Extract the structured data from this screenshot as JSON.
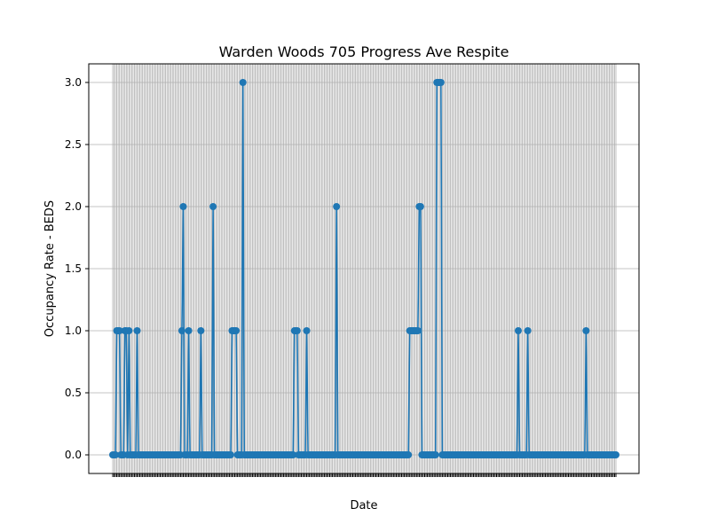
{
  "chart_data": {
    "type": "line",
    "title": "Warden Woods 705 Progress Ave Respite",
    "xlabel": "Date",
    "ylabel": "Occupancy Rate - BEDS",
    "ylim": [
      -0.15,
      3.15
    ],
    "yticks": [
      "0.0",
      "0.5",
      "1.0",
      "1.5",
      "2.0",
      "2.5",
      "3.0"
    ],
    "grid": true,
    "marker": "circle",
    "line_color": "#1f77b4",
    "series": [
      {
        "values": [
          0,
          0,
          0,
          1,
          1,
          1,
          0,
          0,
          0,
          1,
          1,
          0,
          1,
          0,
          0,
          0,
          0,
          0,
          1,
          0,
          0,
          0,
          0,
          0,
          0,
          0,
          0,
          0,
          0,
          0,
          0,
          0,
          0,
          0,
          0,
          0,
          0,
          0,
          0,
          0,
          0,
          0,
          0,
          0,
          0,
          0,
          0,
          0,
          0,
          0,
          0,
          1,
          2,
          0,
          0,
          0,
          1,
          0,
          0,
          0,
          0,
          0,
          0,
          0,
          0,
          1,
          0,
          0,
          0,
          0,
          0,
          0,
          0,
          0,
          2,
          0,
          0,
          0,
          0,
          0,
          0,
          0,
          0,
          0,
          0,
          0,
          0,
          0,
          1,
          1,
          1,
          1,
          0,
          0,
          0,
          0,
          3,
          0,
          0,
          0,
          0,
          0,
          0,
          0,
          0,
          0,
          0,
          0,
          0,
          0,
          0,
          0,
          0,
          0,
          0,
          0,
          0,
          0,
          0,
          0,
          0,
          0,
          0,
          0,
          0,
          0,
          0,
          0,
          0,
          0,
          0,
          0,
          0,
          0,
          1,
          1,
          1,
          0,
          0,
          0,
          0,
          0,
          0,
          1,
          0,
          0,
          0,
          0,
          0,
          0,
          0,
          0,
          0,
          0,
          0,
          0,
          0,
          0,
          0,
          0,
          0,
          0,
          0,
          0,
          0,
          2,
          0,
          0,
          0,
          0,
          0,
          0,
          0,
          0,
          0,
          0,
          0,
          0,
          0,
          0,
          0,
          0,
          0,
          0,
          0,
          0,
          0,
          0,
          0,
          0,
          0,
          0,
          0,
          0,
          0,
          0,
          0,
          0,
          0,
          0,
          0,
          0,
          0,
          0,
          0,
          0,
          0,
          0,
          0,
          0,
          0,
          0,
          0,
          0,
          0,
          0,
          0,
          0,
          0,
          1,
          1,
          1,
          1,
          1,
          1,
          1,
          2,
          2,
          0,
          0,
          0,
          0,
          0,
          0,
          0,
          0,
          0,
          0,
          0,
          3,
          3,
          3,
          3,
          0,
          0,
          0,
          0,
          0,
          0,
          0,
          0,
          0,
          0,
          0,
          0,
          0,
          0,
          0,
          0,
          0,
          0,
          0,
          0,
          0,
          0,
          0,
          0,
          0,
          0,
          0,
          0,
          0,
          0,
          0,
          0,
          0,
          0,
          0,
          0,
          0,
          0,
          0,
          0,
          0,
          0,
          0,
          0,
          0,
          0,
          0,
          0,
          0,
          0,
          0,
          0,
          0,
          0,
          0,
          0,
          1,
          0,
          0,
          0,
          0,
          0,
          0,
          1,
          0,
          0,
          0,
          0,
          0,
          0,
          0,
          0,
          0,
          0,
          0,
          0,
          0,
          0,
          0,
          0,
          0,
          0,
          0,
          0,
          0,
          0,
          0,
          0,
          0,
          0,
          0,
          0,
          0,
          0,
          0,
          0,
          0,
          0,
          0,
          0,
          0,
          0,
          0,
          0,
          0,
          0,
          1,
          0,
          0,
          0,
          0,
          0,
          0,
          0,
          0,
          0,
          0,
          0,
          0,
          0,
          0,
          0,
          0,
          0,
          0,
          0,
          0,
          0,
          0
        ]
      }
    ]
  }
}
